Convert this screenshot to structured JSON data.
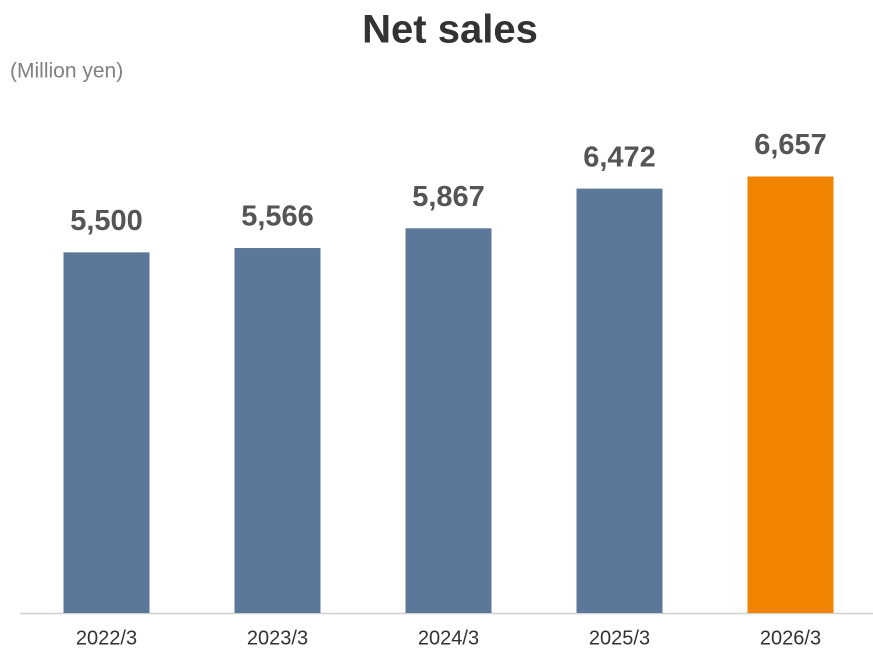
{
  "chart_data": {
    "type": "bar",
    "title": "Net sales",
    "unit_label": "(Million yen)",
    "categories": [
      "2022/3",
      "2023/3",
      "2024/3",
      "2025/3",
      "2026/3"
    ],
    "values": [
      5500,
      5566,
      5867,
      6472,
      6657
    ],
    "value_labels": [
      "5,500",
      "5,566",
      "5,867",
      "6,472",
      "6,657"
    ],
    "colors": [
      "#5b7799",
      "#5b7799",
      "#5b7799",
      "#5b7799",
      "#f08300"
    ],
    "ylim": [
      0,
      7000
    ],
    "grid": false
  }
}
